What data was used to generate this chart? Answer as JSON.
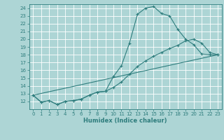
{
  "xlabel": "Humidex (Indice chaleur)",
  "ylabel": "",
  "bg_color": "#add5d5",
  "grid_color": "#ffffff",
  "line_color": "#2e7d7d",
  "xlim": [
    -0.5,
    23.5
  ],
  "ylim": [
    11,
    24.5
  ],
  "xticks": [
    0,
    1,
    2,
    3,
    4,
    5,
    6,
    7,
    8,
    9,
    10,
    11,
    12,
    13,
    14,
    15,
    16,
    17,
    18,
    19,
    20,
    21,
    22,
    23
  ],
  "yticks": [
    12,
    13,
    14,
    15,
    16,
    17,
    18,
    19,
    20,
    21,
    22,
    23,
    24
  ],
  "line1_x": [
    0,
    1,
    2,
    3,
    4,
    5,
    6,
    7,
    8,
    9,
    10,
    11,
    12,
    13,
    14,
    15,
    16,
    17,
    18,
    19,
    20,
    21,
    22,
    23
  ],
  "line1_y": [
    12.8,
    11.9,
    12.1,
    11.6,
    12.0,
    12.1,
    12.3,
    12.8,
    13.2,
    13.3,
    15.2,
    16.6,
    19.5,
    23.2,
    24.0,
    24.2,
    23.3,
    23.0,
    21.3,
    20.0,
    19.3,
    18.1,
    18.0,
    18.0
  ],
  "line2_x": [
    0,
    1,
    2,
    3,
    4,
    5,
    6,
    7,
    8,
    9,
    10,
    11,
    12,
    13,
    14,
    15,
    16,
    17,
    18,
    19,
    20,
    21,
    22,
    23
  ],
  "line2_y": [
    12.8,
    11.9,
    12.1,
    11.6,
    12.0,
    12.1,
    12.3,
    12.8,
    13.2,
    13.3,
    13.8,
    14.5,
    15.5,
    16.5,
    17.2,
    17.8,
    18.3,
    18.8,
    19.2,
    19.8,
    20.0,
    19.5,
    18.3,
    18.0
  ],
  "line3_x": [
    0,
    23
  ],
  "line3_y": [
    12.8,
    18.0
  ]
}
